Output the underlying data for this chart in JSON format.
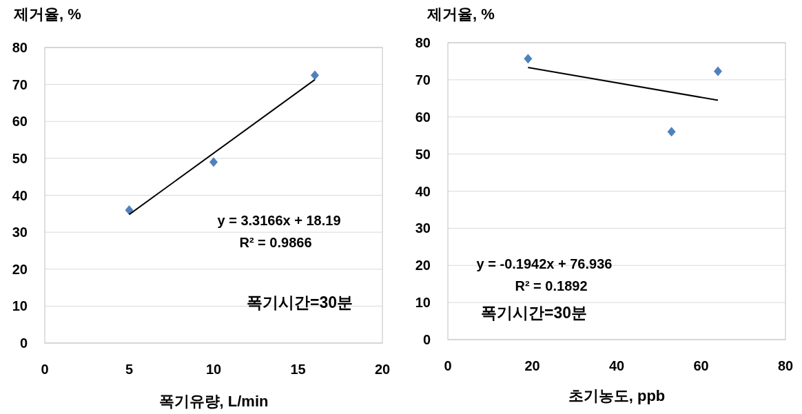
{
  "chart_data": [
    {
      "type": "scatter",
      "ylabel": "제거율, %",
      "xlabel": "폭기유량, L/min",
      "xlim": [
        0,
        20
      ],
      "xticks": [
        0,
        5,
        10,
        15,
        20
      ],
      "ylim": [
        0,
        80
      ],
      "yticks": [
        0,
        10,
        20,
        30,
        40,
        50,
        60,
        70,
        80
      ],
      "grid": "y",
      "series": [
        {
          "color": "#4f81bd",
          "marker": "diamond",
          "x": [
            5,
            10,
            16
          ],
          "values": [
            36,
            49,
            72.5
          ]
        },
        {
          "type": "line",
          "color": "#000000",
          "x": [
            5,
            16
          ],
          "values": [
            34.8,
            71.3
          ]
        }
      ],
      "annotations": [
        "y = 3.3166x + 18.19",
        "R² = 0.9866",
        "폭기시간=30분"
      ]
    },
    {
      "type": "scatter",
      "ylabel": "제거율, %",
      "xlabel": "초기농도, ppb",
      "xlim": [
        0,
        80
      ],
      "xticks": [
        0,
        20,
        40,
        60,
        80
      ],
      "ylim": [
        0,
        80
      ],
      "yticks": [
        0,
        10,
        20,
        30,
        40,
        50,
        60,
        70,
        80
      ],
      "grid": "y",
      "series": [
        {
          "color": "#4f81bd",
          "marker": "diamond",
          "x": [
            19,
            53,
            64
          ],
          "values": [
            75.7,
            56,
            72.3
          ]
        },
        {
          "type": "line",
          "color": "#000000",
          "x": [
            19,
            64
          ],
          "values": [
            73.3,
            64.5
          ]
        }
      ],
      "annotations": [
        "y = -0.1942x + 76.936",
        "R² = 0.1892",
        "폭기시간=30분"
      ]
    }
  ]
}
